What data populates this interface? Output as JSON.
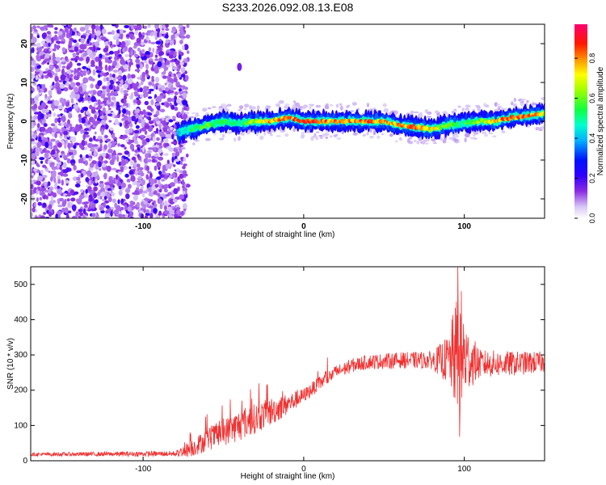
{
  "title": "S233.2026.092.08.13.E08",
  "colorbar_label": "Normalized spectral amplitude",
  "colormap": [
    "#ffffff",
    "#d9c8f5",
    "#8a2be2",
    "#3000ff",
    "#0000ff",
    "#00ccff",
    "#00ff80",
    "#40ff00",
    "#ffff00",
    "#ff8000",
    "#ff0000",
    "#ff0066"
  ],
  "chart_data": [
    {
      "type": "heatmap",
      "name": "spectrogram",
      "xlabel": "Height of straight line (km)",
      "ylabel": "Frequency (Hz)",
      "xlim": [
        -170,
        150
      ],
      "ylim": [
        -25,
        25
      ],
      "xticks": [
        -100,
        0,
        100
      ],
      "yticks": [
        -20,
        -10,
        0,
        10,
        20
      ],
      "colorbar": {
        "label": "Normalized spectral amplitude",
        "range": [
          0.0,
          0.97
        ],
        "ticks": [
          0.0,
          0.2,
          0.4,
          0.6,
          0.8
        ]
      },
      "noise_region_x": [
        -170,
        -75
      ],
      "signal_track": {
        "x": [
          -78,
          -70,
          -60,
          -50,
          -40,
          -30,
          -20,
          -10,
          0,
          10,
          20,
          30,
          40,
          50,
          60,
          70,
          80,
          90,
          100,
          110,
          120,
          130,
          140,
          150
        ],
        "freq": [
          -3,
          -2,
          -1,
          0,
          -0.5,
          0,
          0,
          1,
          0,
          0,
          0,
          0,
          0,
          0,
          -1,
          -1.5,
          -2,
          -1,
          -0.5,
          0,
          0,
          1,
          1.5,
          2
        ],
        "amplitude": [
          0.45,
          0.55,
          0.6,
          0.55,
          0.5,
          0.7,
          0.8,
          0.85,
          0.9,
          0.9,
          0.85,
          0.85,
          0.85,
          0.8,
          0.8,
          0.85,
          0.75,
          0.6,
          0.55,
          0.65,
          0.8,
          0.85,
          0.9,
          0.75
        ]
      },
      "spur": {
        "x": -40,
        "freq": 14
      }
    },
    {
      "type": "line",
      "name": "snr",
      "xlabel": "Height of straight line (km)",
      "ylabel": "SNR (10 * v/v)",
      "xlim": [
        -170,
        150
      ],
      "ylim": [
        0,
        550
      ],
      "xticks": [
        -100,
        0,
        100
      ],
      "yticks": [
        0,
        100,
        200,
        300,
        400,
        500
      ],
      "color": "#f03030",
      "trend": {
        "x": [
          -170,
          -80,
          -70,
          -60,
          -50,
          -40,
          -30,
          -20,
          -10,
          0,
          10,
          20,
          30,
          40,
          60,
          80,
          90,
          95,
          100,
          110,
          130,
          150
        ],
        "y": [
          18,
          20,
          35,
          60,
          80,
          100,
          120,
          140,
          160,
          185,
          220,
          250,
          270,
          280,
          285,
          285,
          285,
          300,
          290,
          275,
          275,
          280
        ]
      },
      "noise": {
        "x": [
          -170,
          -80,
          -70,
          -40,
          -20,
          0,
          30,
          80,
          90,
          95,
          98,
          102,
          110,
          150
        ],
        "amp": [
          5,
          8,
          25,
          45,
          40,
          20,
          20,
          25,
          70,
          160,
          200,
          90,
          40,
          30
        ]
      },
      "peak": {
        "x": 96,
        "y": 550
      },
      "trough": {
        "x": 97,
        "y": 68
      }
    }
  ]
}
